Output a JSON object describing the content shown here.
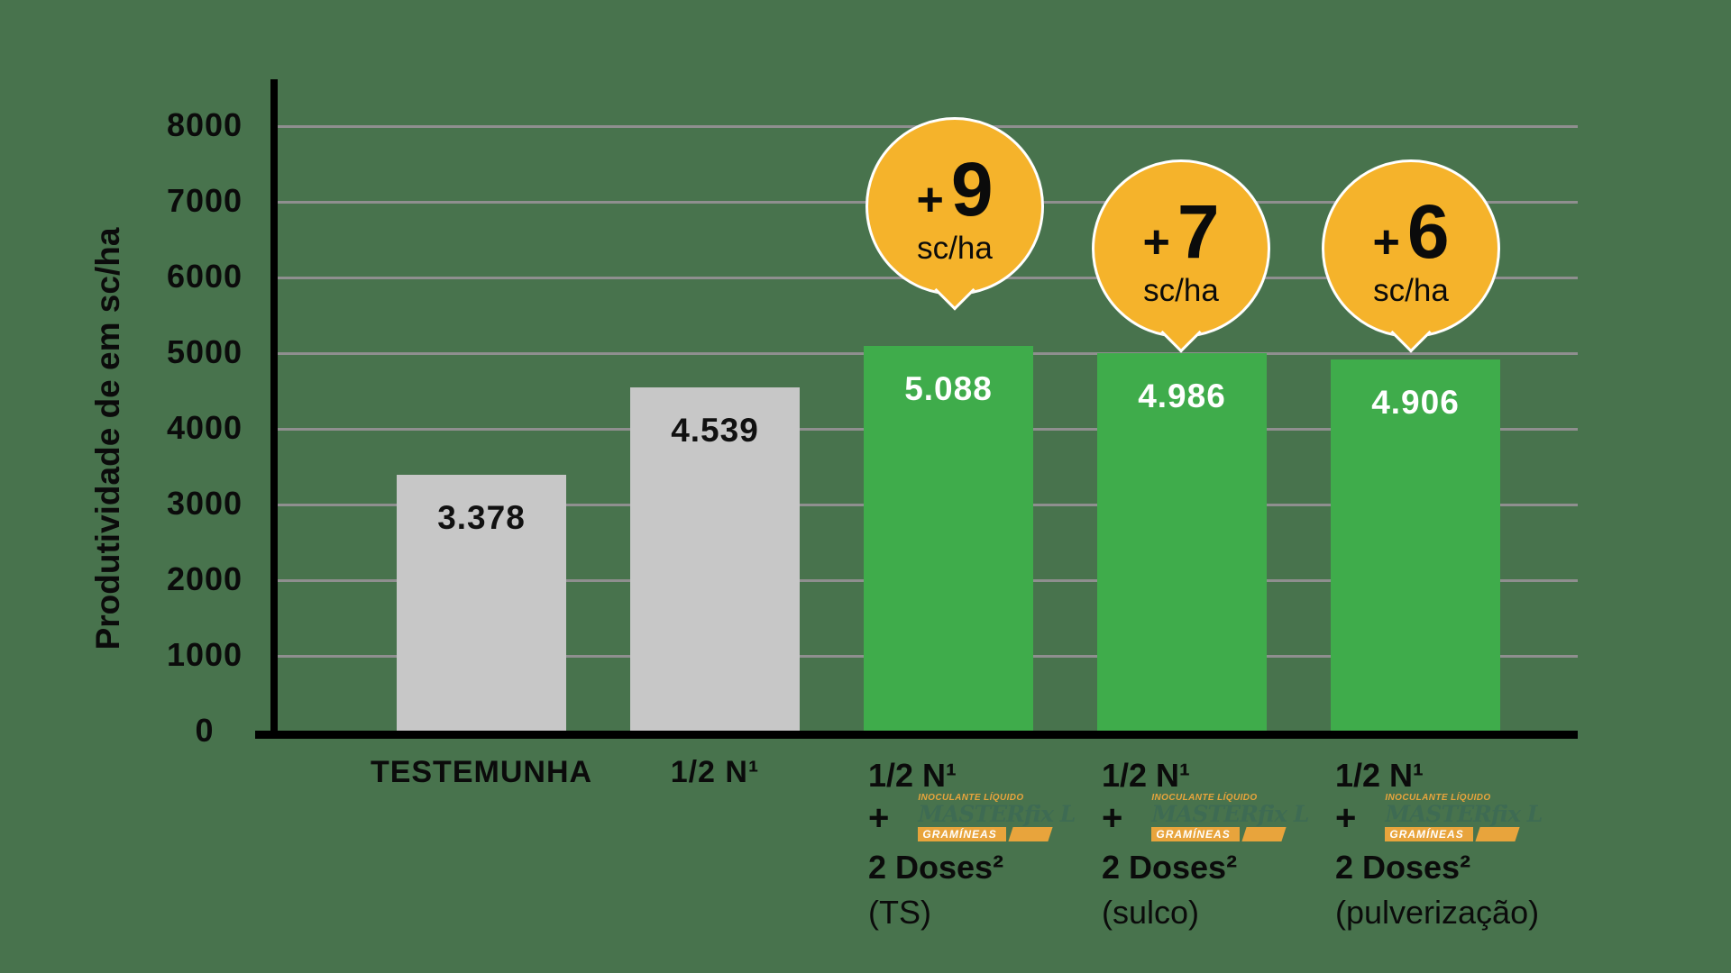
{
  "colors": {
    "background": "#48734D",
    "bar-gray": "#C7C7C7",
    "bar-green": "#3FAC4B",
    "bubble-yellow": "#F5B32B",
    "gridline": "#8F8F8F",
    "axis": "#000000",
    "logo-orange": "#E8A43C",
    "logo-green": "#3E6B53"
  },
  "chart_data": {
    "type": "bar",
    "title": "",
    "ylabel": "Produtividade de em sc/ha",
    "xlabel": "",
    "ylim": [
      0,
      8000
    ],
    "yticks": [
      0,
      1000,
      2000,
      3000,
      4000,
      5000,
      6000,
      7000,
      8000
    ],
    "ytick_labels": [
      "0",
      "1000",
      "2000",
      "3000",
      "4000",
      "5000",
      "6000",
      "7000",
      "8000"
    ],
    "grid": "horizontal",
    "legend": "none",
    "categories": [
      "TESTEMUNHA",
      "1/2 N¹",
      "1/2 N¹ + MASTERfix L GRAMÍNEAS 2 Doses² (TS)",
      "1/2 N¹ + MASTERfix L GRAMÍNEAS 2 Doses² (sulco)",
      "1/2 N¹ + MASTERfix L GRAMÍNEAS 2 Doses² (pulverização)"
    ],
    "values": [
      3378,
      4539,
      5088,
      4986,
      4906
    ],
    "value_labels": [
      "3.378",
      "4.539",
      "5.088",
      "4.986",
      "4.906"
    ],
    "bar_color_keys": [
      "gray",
      "gray",
      "green",
      "green",
      "green"
    ],
    "annotations": [
      {
        "target": "TS",
        "sign": "+",
        "value": "9",
        "unit": "sc/ha"
      },
      {
        "target": "sulco",
        "sign": "+",
        "value": "7",
        "unit": "sc/ha"
      },
      {
        "target": "pulverização",
        "sign": "+",
        "value": "6",
        "unit": "sc/ha"
      }
    ]
  },
  "x_axis": {
    "simple_labels": [
      "TESTEMUNHA",
      "1/2 N¹"
    ],
    "composite_labels": [
      {
        "line1": "1/2 N¹",
        "plus": "+",
        "doses": "2 Doses²",
        "method": "(TS)"
      },
      {
        "line1": "1/2 N¹",
        "plus": "+",
        "doses": "2 Doses²",
        "method": "(sulco)"
      },
      {
        "line1": "1/2 N¹",
        "plus": "+",
        "doses": "2 Doses²",
        "method": "(pulverização)"
      }
    ]
  },
  "logo": {
    "tagline": "INOCULANTE LÍQUIDO",
    "name": "MASTERfix L",
    "banner": "GRAMÍNEAS"
  }
}
